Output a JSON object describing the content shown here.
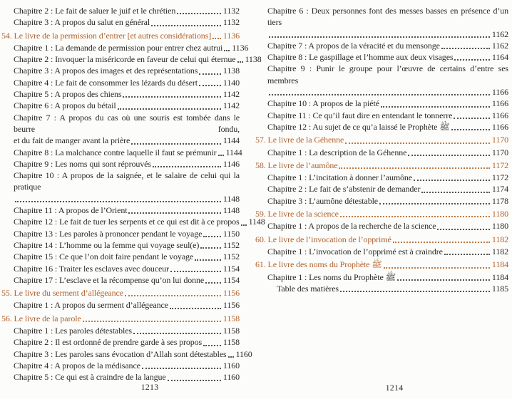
{
  "document": {
    "kind": "book-table-of-contents",
    "language": "fr"
  },
  "colors": {
    "paper": "#fcfcfa",
    "ink": "#2b2a27",
    "accent": "#b2622e",
    "leader_dots": "#57544e"
  },
  "pages": [
    {
      "folio": "1213",
      "entries": [
        {
          "level": "chapter",
          "text": "Chapitre 2 : Le fait de saluer le juif et le chrétien",
          "page": "1132"
        },
        {
          "level": "chapter",
          "text": "Chapitre 3 : A propos du salut en général",
          "page": "1132"
        },
        {
          "level": "book",
          "text": "54. Le livre de la permission d’entrer [et autres considérations]",
          "page": "1136"
        },
        {
          "level": "chapter",
          "text": "Chapitre 1 : La demande de permission pour entrer chez autrui",
          "page": "1136"
        },
        {
          "level": "chapter",
          "text": "Chapitre 2 : Invoquer la miséricorde en faveur de celui qui éternue",
          "page": "1138"
        },
        {
          "level": "chapter",
          "text": "Chapitre 3 : A propos des images et des représentations",
          "page": "1138"
        },
        {
          "level": "chapter",
          "text": "Chapitre 4 : Le fait de consommer les lézards du désert",
          "page": "1140"
        },
        {
          "level": "chapter",
          "text": "Chapitre 5 : A propos des chiens",
          "page": "1142"
        },
        {
          "level": "chapter",
          "text": "Chapitre 6 : A propos du bétail",
          "page": "1142"
        },
        {
          "level": "chapter",
          "twoLine": true,
          "text": "Chapitre 7 : A propos du cas où une souris est tombée dans le beurre fondu,",
          "line2": "et du fait de manger avant la prière",
          "page": "1144"
        },
        {
          "level": "chapter",
          "text": "Chapitre 8 : La malchance contre laquelle il faut se prémunir",
          "page": "1144"
        },
        {
          "level": "chapter",
          "text": "Chapitre 9 : Les noms qui sont réprouvés",
          "page": "1146"
        },
        {
          "level": "chapter",
          "twoLine": true,
          "text": "Chapitre 10 : A propos de la saignée, et le salaire de celui qui la pratique",
          "line2": "",
          "page": "1148"
        },
        {
          "level": "chapter",
          "text": "Chapitre 11 : A propos de l’Orient",
          "page": "1148"
        },
        {
          "level": "chapter",
          "text": "Chapitre 12 : Le fait de tuer les serpents et ce qui est dit à ce propos",
          "page": "1148"
        },
        {
          "level": "chapter",
          "text": "Chapitre 13 : Les paroles à prononcer pendant le voyage",
          "page": "1150"
        },
        {
          "level": "chapter",
          "text": "Chapitre 14 : L’homme ou la femme qui voyage seul(e)",
          "page": "1152"
        },
        {
          "level": "chapter",
          "text": "Chapitre 15 : Ce que l’on doit faire pendant le voyage",
          "page": "1152"
        },
        {
          "level": "chapter",
          "text": "Chapitre 16 : Traiter les esclaves avec douceur",
          "page": "1154"
        },
        {
          "level": "chapter",
          "text": "Chapitre 17 : L’esclave et la récompense qu’on lui donne",
          "page": "1154"
        },
        {
          "level": "book",
          "text": "55. Le livre du serment d’allégeance",
          "page": "1156"
        },
        {
          "level": "chapter",
          "text": "Chapitre 1 : A propos du serment d’allégeance",
          "page": "1156"
        },
        {
          "level": "book",
          "text": "56. Le livre de la parole",
          "page": "1158"
        },
        {
          "level": "chapter",
          "text": "Chapitre 1 : Les paroles détestables",
          "page": "1158"
        },
        {
          "level": "chapter",
          "text": "Chapitre 2 : Il est ordonné de prendre garde à ses propos",
          "page": "1158"
        },
        {
          "level": "chapter",
          "text": "Chapitre 3 : Les paroles sans évocation d’Allah sont détestables",
          "page": "1160"
        },
        {
          "level": "chapter",
          "text": "Chapitre 4 : A propos de la médisance",
          "page": "1160"
        },
        {
          "level": "chapter",
          "text": "Chapitre 5 : Ce qui est à craindre de la langue",
          "page": "1160"
        }
      ]
    },
    {
      "folio": "1214",
      "entries": [
        {
          "level": "chapter",
          "twoLine": true,
          "text": "Chapitre 6 : Deux personnes font des messes basses en présence d’un tiers",
          "line2": "",
          "page": "1162"
        },
        {
          "level": "chapter",
          "text": "Chapitre 7 : A propos de la véracité et du mensonge",
          "page": "1162"
        },
        {
          "level": "chapter",
          "text": "Chapitre 8 : Le gaspillage et l’homme aux deux visages",
          "page": "1164"
        },
        {
          "level": "chapter",
          "twoLine": true,
          "text": "Chapitre 9 : Punir le groupe pour l’œuvre de certains d’entre ses membres",
          "line2": "",
          "page": "1166"
        },
        {
          "level": "chapter",
          "text": "Chapitre 10 : A propos de la piété",
          "page": "1166"
        },
        {
          "level": "chapter",
          "text": "Chapitre 11 : Ce qu’il faut dire en entendant le tonnerre",
          "page": "1166"
        },
        {
          "level": "chapter",
          "text": "Chapitre 12 : Au sujet de ce qu’a laissé le Prophète ﷺ",
          "page": "1166"
        },
        {
          "level": "book",
          "text": "57. Le livre de la Géhenne",
          "page": "1170"
        },
        {
          "level": "chapter",
          "text": "Chapitre 1 : La description de la Géhenne",
          "page": "1170"
        },
        {
          "level": "book",
          "text": "58. Le livre de l’aumône",
          "page": "1172"
        },
        {
          "level": "chapter",
          "text": "Chapitre 1 : L’incitation à donner l’aumône",
          "page": "1172"
        },
        {
          "level": "chapter",
          "text": "Chapitre 2 : Le fait de s’abstenir de demander",
          "page": "1174"
        },
        {
          "level": "chapter",
          "text": "Chapitre 3 : L’aumône détestable",
          "page": "1178"
        },
        {
          "level": "book",
          "text": "59. Le livre de la science",
          "page": "1180"
        },
        {
          "level": "chapter",
          "text": "Chapitre 1 : A propos de la recherche de la science",
          "page": "1180"
        },
        {
          "level": "book",
          "text": "60. Le livre de l’invocation de l’opprimé",
          "page": "1182"
        },
        {
          "level": "chapter",
          "text": "Chapitre 1 : L’invocation de l’opprimé est à craindre",
          "page": "1182"
        },
        {
          "level": "book",
          "text": "61. Le livre des noms du Prophète ﷺ",
          "page": "1184"
        },
        {
          "level": "chapter",
          "text": "Chapitre 1 : Les noms du Prophète ﷺ",
          "page": "1184"
        },
        {
          "level": "plain",
          "text": "Table des matières",
          "page": "1185"
        }
      ]
    }
  ]
}
